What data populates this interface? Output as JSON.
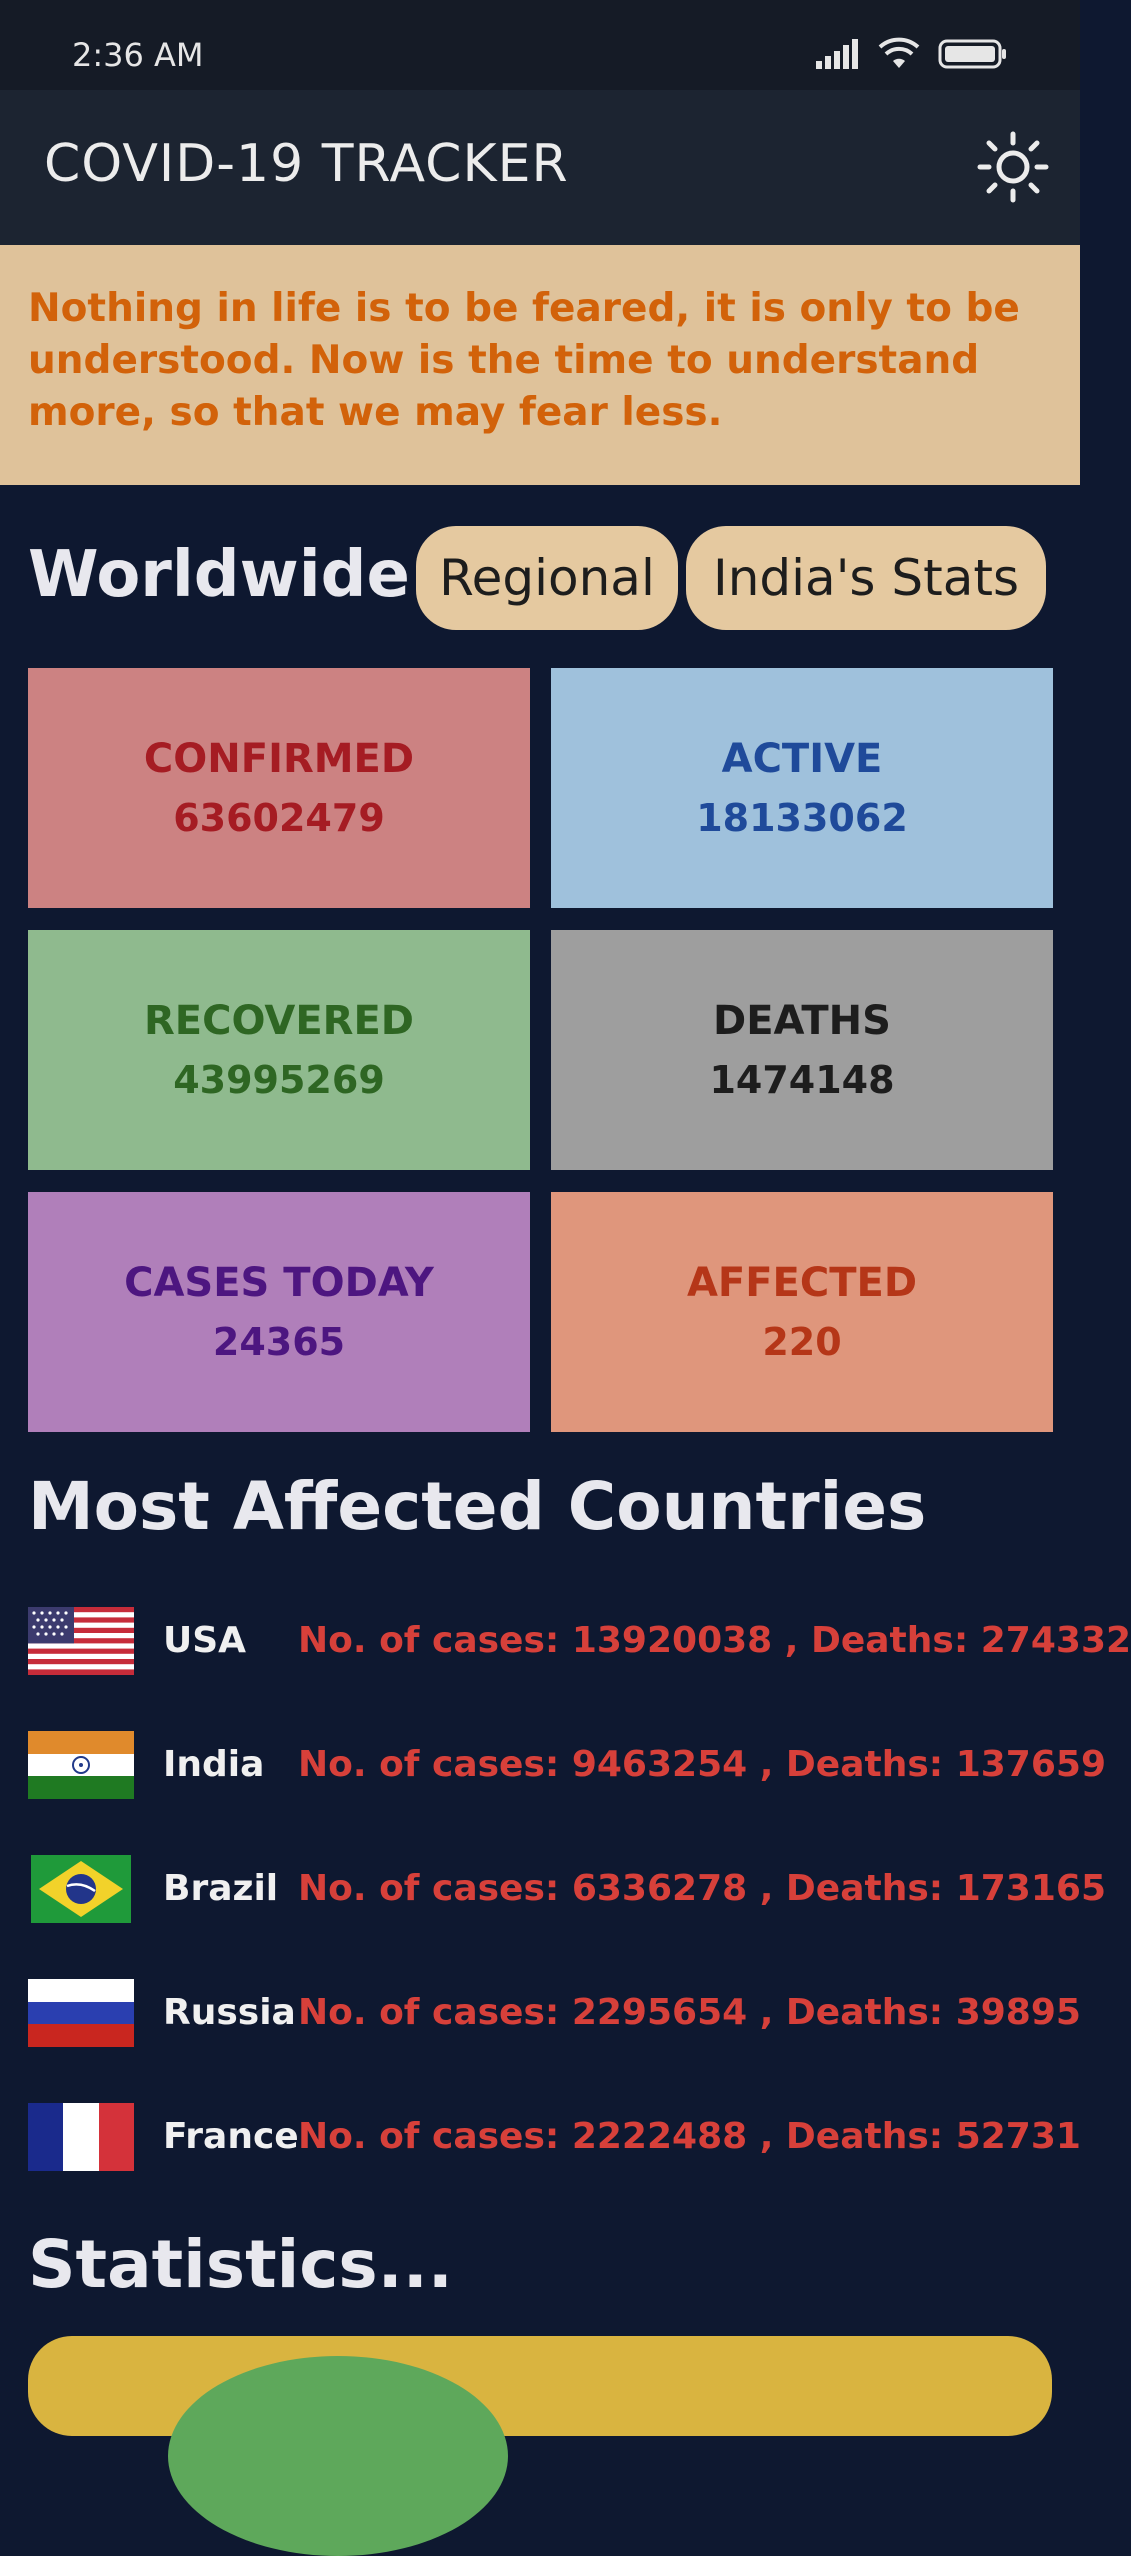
{
  "status_bar": {
    "time": "2:36 AM"
  },
  "app_bar": {
    "title": "COVID-19 TRACKER"
  },
  "quote": "Nothing in life is to be feared, it is only to be understood. Now is the time to understand more, so that we may fear less.",
  "tabs": {
    "worldwide": "Worldwide",
    "regional": "Regional",
    "india": "India's Stats"
  },
  "cards": {
    "confirmed": {
      "label": "CONFIRMED",
      "value": "63602479"
    },
    "active": {
      "label": "ACTIVE",
      "value": "18133062"
    },
    "recovered": {
      "label": "RECOVERED",
      "value": "43995269"
    },
    "deaths": {
      "label": "DEATHS",
      "value": "1474148"
    },
    "today": {
      "label": "CASES TODAY",
      "value": "24365"
    },
    "affected": {
      "label": "AFFECTED",
      "value": "220"
    }
  },
  "most_affected": {
    "title": "Most Affected Countries",
    "rows": [
      {
        "name": "USA",
        "stats": "No. of cases: 13920038 ,  Deaths: 274332"
      },
      {
        "name": "India",
        "stats": "No. of cases: 9463254 ,  Deaths: 137659"
      },
      {
        "name": "Brazil",
        "stats": "No. of cases: 6336278 ,  Deaths: 173165"
      },
      {
        "name": "Russia",
        "stats": "No. of cases: 2295654 ,  Deaths: 39895"
      },
      {
        "name": "France",
        "stats": "No. of cases: 2222488 ,  Deaths: 52731"
      }
    ]
  },
  "statistics": {
    "title": "Statistics..."
  },
  "colors": {
    "background": "#0e1830",
    "accent_red": "#d7403a",
    "pill": "#e5c9a0"
  }
}
